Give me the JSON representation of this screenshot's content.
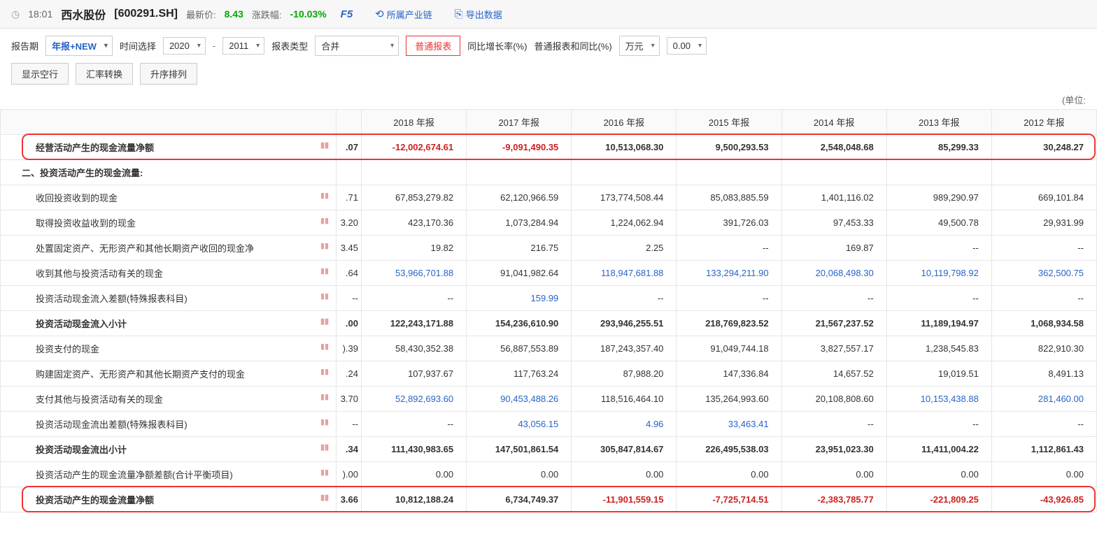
{
  "header": {
    "time": "18:01",
    "stock_name": "西水股份",
    "stock_code": "[600291.SH]",
    "latest_label": "最新价:",
    "latest_price": "8.43",
    "change_label": "涨跌幅:",
    "change_pct": "-10.03%",
    "f5": "F5",
    "industry_chain": "所属产业链",
    "export_data": "导出数据"
  },
  "controls": {
    "report_period_label": "报告期",
    "report_period_value": "年报+NEW",
    "time_select_label": "时间选择",
    "year_from": "2020",
    "year_to": "2011",
    "report_type_label": "报表类型",
    "report_type_value": "合并",
    "normal_report": "普通报表",
    "yoy_label": "同比增长率(%)",
    "normal_yoy_label": "普通报表和同比(%)",
    "unit_value": "万元",
    "decimal_value": "0.00",
    "show_empty": "显示空行",
    "currency_convert": "汇率转换",
    "sort_asc": "升序排列",
    "unit_text": "(单位:"
  },
  "columns": [
    "2018 年报",
    "2017 年报",
    "2016 年报",
    "2015 年报",
    "2014 年报",
    "2013 年报",
    "2012 年报"
  ],
  "rows": [
    {
      "name": "经营活动产生的现金流量净额",
      "bold": true,
      "indent": 1,
      "partial": ".07",
      "cells": [
        {
          "v": "-12,002,674.61",
          "cls": "neg bold"
        },
        {
          "v": "-9,091,490.35",
          "cls": "neg bold"
        },
        {
          "v": "10,513,068.30",
          "cls": "bold"
        },
        {
          "v": "9,500,293.53",
          "cls": "bold"
        },
        {
          "v": "2,548,048.68",
          "cls": "bold"
        },
        {
          "v": "85,299.33",
          "cls": "bold"
        },
        {
          "v": "30,248.27",
          "cls": "bold"
        }
      ],
      "highlight": true
    },
    {
      "name": "二、投资活动产生的现金流量:",
      "bold": true,
      "indent": 0,
      "partial": "",
      "cells": [
        {
          "v": "",
          "cls": ""
        },
        {
          "v": "",
          "cls": ""
        },
        {
          "v": "",
          "cls": ""
        },
        {
          "v": "",
          "cls": ""
        },
        {
          "v": "",
          "cls": ""
        },
        {
          "v": "",
          "cls": ""
        },
        {
          "v": "",
          "cls": ""
        }
      ]
    },
    {
      "name": "收回投资收到的现金",
      "bold": false,
      "indent": 1,
      "partial": ".71",
      "cells": [
        {
          "v": "67,853,279.82",
          "cls": ""
        },
        {
          "v": "62,120,966.59",
          "cls": ""
        },
        {
          "v": "173,774,508.44",
          "cls": ""
        },
        {
          "v": "85,083,885.59",
          "cls": ""
        },
        {
          "v": "1,401,116.02",
          "cls": ""
        },
        {
          "v": "989,290.97",
          "cls": ""
        },
        {
          "v": "669,101.84",
          "cls": ""
        }
      ]
    },
    {
      "name": "取得投资收益收到的现金",
      "bold": false,
      "indent": 1,
      "partial": "3.20",
      "cells": [
        {
          "v": "423,170.36",
          "cls": ""
        },
        {
          "v": "1,073,284.94",
          "cls": ""
        },
        {
          "v": "1,224,062.94",
          "cls": ""
        },
        {
          "v": "391,726.03",
          "cls": ""
        },
        {
          "v": "97,453.33",
          "cls": ""
        },
        {
          "v": "49,500.78",
          "cls": ""
        },
        {
          "v": "29,931.99",
          "cls": ""
        }
      ]
    },
    {
      "name": "处置固定资产、无形资产和其他长期资产收回的现金净",
      "bold": false,
      "indent": 1,
      "partial": "3.45",
      "cells": [
        {
          "v": "19.82",
          "cls": ""
        },
        {
          "v": "216.75",
          "cls": ""
        },
        {
          "v": "2.25",
          "cls": ""
        },
        {
          "v": "--",
          "cls": ""
        },
        {
          "v": "169.87",
          "cls": ""
        },
        {
          "v": "--",
          "cls": ""
        },
        {
          "v": "--",
          "cls": ""
        }
      ]
    },
    {
      "name": "收到其他与投资活动有关的现金",
      "bold": false,
      "indent": 1,
      "partial": ".64",
      "cells": [
        {
          "v": "53,966,701.88",
          "cls": "link"
        },
        {
          "v": "91,041,982.64",
          "cls": ""
        },
        {
          "v": "118,947,681.88",
          "cls": "link"
        },
        {
          "v": "133,294,211.90",
          "cls": "link"
        },
        {
          "v": "20,068,498.30",
          "cls": "link"
        },
        {
          "v": "10,119,798.92",
          "cls": "link"
        },
        {
          "v": "362,500.75",
          "cls": "link"
        }
      ]
    },
    {
      "name": "投资活动现金流入差额(特殊报表科目)",
      "bold": false,
      "indent": 1,
      "partial": "--",
      "cells": [
        {
          "v": "--",
          "cls": ""
        },
        {
          "v": "159.99",
          "cls": "link"
        },
        {
          "v": "--",
          "cls": ""
        },
        {
          "v": "--",
          "cls": ""
        },
        {
          "v": "--",
          "cls": ""
        },
        {
          "v": "--",
          "cls": ""
        },
        {
          "v": "--",
          "cls": ""
        }
      ]
    },
    {
      "name": "投资活动现金流入小计",
      "bold": true,
      "indent": 1,
      "partial": ".00",
      "cells": [
        {
          "v": "122,243,171.88",
          "cls": "bold"
        },
        {
          "v": "154,236,610.90",
          "cls": "bold"
        },
        {
          "v": "293,946,255.51",
          "cls": "bold"
        },
        {
          "v": "218,769,823.52",
          "cls": "bold"
        },
        {
          "v": "21,567,237.52",
          "cls": "bold"
        },
        {
          "v": "11,189,194.97",
          "cls": "bold"
        },
        {
          "v": "1,068,934.58",
          "cls": "bold"
        }
      ]
    },
    {
      "name": "投资支付的现金",
      "bold": false,
      "indent": 1,
      "partial": ").39",
      "cells": [
        {
          "v": "58,430,352.38",
          "cls": ""
        },
        {
          "v": "56,887,553.89",
          "cls": ""
        },
        {
          "v": "187,243,357.40",
          "cls": ""
        },
        {
          "v": "91,049,744.18",
          "cls": ""
        },
        {
          "v": "3,827,557.17",
          "cls": ""
        },
        {
          "v": "1,238,545.83",
          "cls": ""
        },
        {
          "v": "822,910.30",
          "cls": ""
        }
      ]
    },
    {
      "name": "购建固定资产、无形资产和其他长期资产支付的现金",
      "bold": false,
      "indent": 1,
      "partial": ".24",
      "cells": [
        {
          "v": "107,937.67",
          "cls": ""
        },
        {
          "v": "117,763.24",
          "cls": ""
        },
        {
          "v": "87,988.20",
          "cls": ""
        },
        {
          "v": "147,336.84",
          "cls": ""
        },
        {
          "v": "14,657.52",
          "cls": ""
        },
        {
          "v": "19,019.51",
          "cls": ""
        },
        {
          "v": "8,491.13",
          "cls": ""
        }
      ]
    },
    {
      "name": "支付其他与投资活动有关的现金",
      "bold": false,
      "indent": 1,
      "partial": "3.70",
      "cells": [
        {
          "v": "52,892,693.60",
          "cls": "link"
        },
        {
          "v": "90,453,488.26",
          "cls": "link"
        },
        {
          "v": "118,516,464.10",
          "cls": ""
        },
        {
          "v": "135,264,993.60",
          "cls": ""
        },
        {
          "v": "20,108,808.60",
          "cls": ""
        },
        {
          "v": "10,153,438.88",
          "cls": "link"
        },
        {
          "v": "281,460.00",
          "cls": "link"
        }
      ]
    },
    {
      "name": "投资活动现金流出差额(特殊报表科目)",
      "bold": false,
      "indent": 1,
      "partial": "--",
      "cells": [
        {
          "v": "--",
          "cls": ""
        },
        {
          "v": "43,056.15",
          "cls": "link"
        },
        {
          "v": "4.96",
          "cls": "link"
        },
        {
          "v": "33,463.41",
          "cls": "link"
        },
        {
          "v": "--",
          "cls": ""
        },
        {
          "v": "--",
          "cls": ""
        },
        {
          "v": "--",
          "cls": ""
        }
      ]
    },
    {
      "name": "投资活动现金流出小计",
      "bold": true,
      "indent": 1,
      "partial": ".34",
      "cells": [
        {
          "v": "111,430,983.65",
          "cls": "bold"
        },
        {
          "v": "147,501,861.54",
          "cls": "bold"
        },
        {
          "v": "305,847,814.67",
          "cls": "bold"
        },
        {
          "v": "226,495,538.03",
          "cls": "bold"
        },
        {
          "v": "23,951,023.30",
          "cls": "bold"
        },
        {
          "v": "11,411,004.22",
          "cls": "bold"
        },
        {
          "v": "1,112,861.43",
          "cls": "bold"
        }
      ]
    },
    {
      "name": "投资活动产生的现金流量净额差额(合计平衡项目)",
      "bold": false,
      "indent": 1,
      "partial": ").00",
      "cells": [
        {
          "v": "0.00",
          "cls": ""
        },
        {
          "v": "0.00",
          "cls": ""
        },
        {
          "v": "0.00",
          "cls": ""
        },
        {
          "v": "0.00",
          "cls": ""
        },
        {
          "v": "0.00",
          "cls": ""
        },
        {
          "v": "0.00",
          "cls": ""
        },
        {
          "v": "0.00",
          "cls": ""
        }
      ]
    },
    {
      "name": "投资活动产生的现金流量净额",
      "bold": true,
      "indent": 1,
      "partial": "3.66",
      "cells": [
        {
          "v": "10,812,188.24",
          "cls": "bold"
        },
        {
          "v": "6,734,749.37",
          "cls": "bold"
        },
        {
          "v": "-11,901,559.15",
          "cls": "neg bold"
        },
        {
          "v": "-7,725,714.51",
          "cls": "neg bold"
        },
        {
          "v": "-2,383,785.77",
          "cls": "neg bold"
        },
        {
          "v": "-221,809.25",
          "cls": "neg bold"
        },
        {
          "v": "-43,926.85",
          "cls": "neg bold"
        }
      ],
      "highlight": true
    }
  ],
  "colors": {
    "link": "#2864c7",
    "neg": "#cc2222",
    "pos": "#00aa00",
    "border": "#e6e6e6",
    "highlight": "#e33"
  }
}
